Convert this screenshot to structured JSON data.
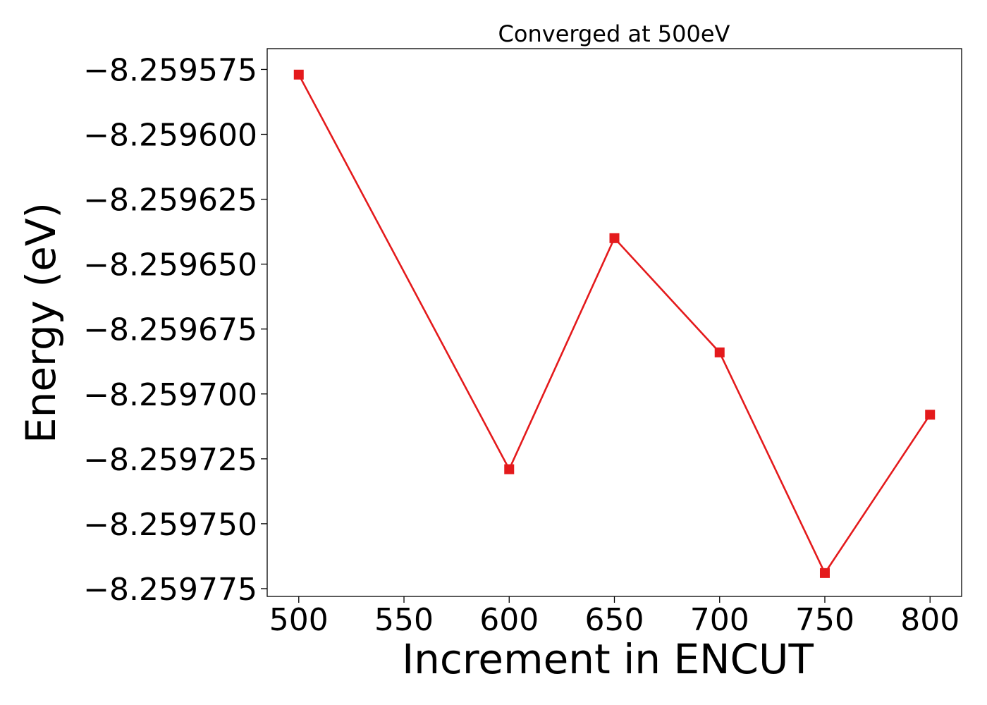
{
  "chart_data": {
    "type": "line",
    "title": "Converged at 500eV",
    "xlabel": "Increment in ENCUT",
    "ylabel": "Energy (eV)",
    "xlim": [
      485,
      815
    ],
    "ylim": [
      -8.259778,
      -8.259567
    ],
    "x_ticks": [
      500,
      550,
      600,
      650,
      700,
      750,
      800
    ],
    "x_tick_labels": [
      "500",
      "550",
      "600",
      "650",
      "700",
      "750",
      "800"
    ],
    "y_ticks": [
      -8.259575,
      -8.2596,
      -8.259625,
      -8.25965,
      -8.259675,
      -8.2597,
      -8.259725,
      -8.25975,
      -8.259775
    ],
    "y_tick_labels": [
      "−8.259575",
      "−8.259600",
      "−8.259625",
      "−8.259650",
      "−8.259675",
      "−8.259700",
      "−8.259725",
      "−8.259750",
      "−8.259775"
    ],
    "grid": false,
    "series": [
      {
        "color": "#e41a1c",
        "marker": "square",
        "x": [
          500,
          600,
          650,
          700,
          750,
          800
        ],
        "y": [
          -8.259577,
          -8.259729,
          -8.25964,
          -8.259684,
          -8.259769,
          -8.259708
        ]
      }
    ]
  }
}
